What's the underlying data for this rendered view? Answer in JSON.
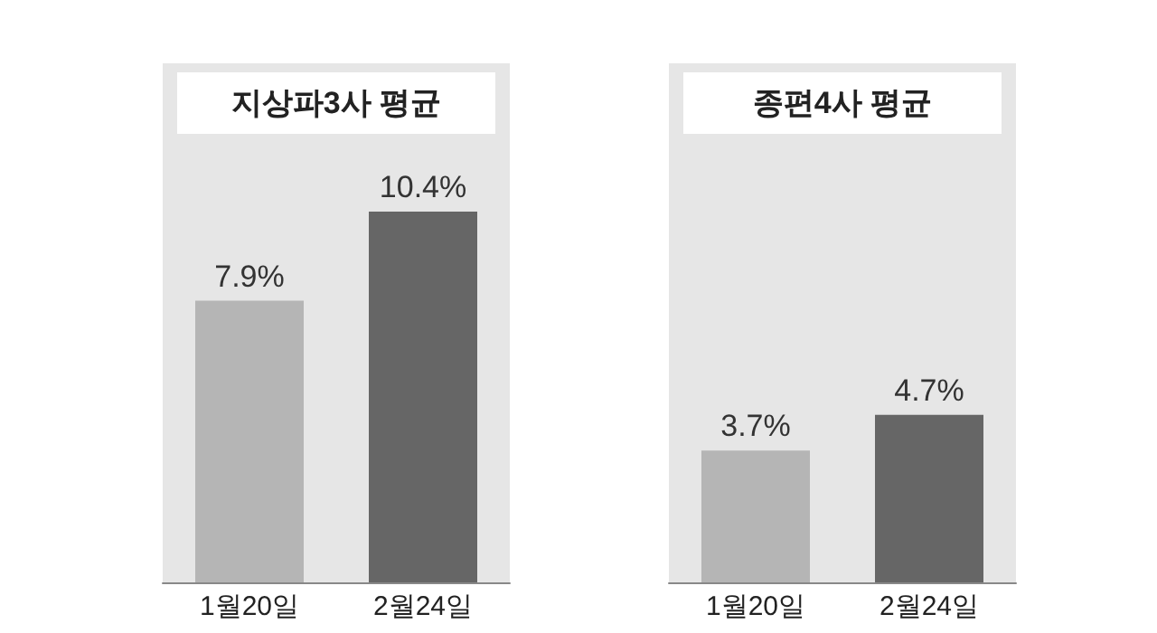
{
  "chart_data": [
    {
      "type": "bar",
      "title": "지상파3사 평균",
      "categories": [
        "1월20일",
        "2월24일"
      ],
      "values": [
        7.9,
        10.4
      ],
      "colors": [
        "#b5b5b5",
        "#666666"
      ],
      "value_labels": [
        "7.9%",
        "10.4%"
      ]
    },
    {
      "type": "bar",
      "title": "종편4사 평균",
      "categories": [
        "1월20일",
        "2월24일"
      ],
      "values": [
        3.7,
        4.7
      ],
      "colors": [
        "#b5b5b5",
        "#666666"
      ],
      "value_labels": [
        "3.7%",
        "4.7%"
      ]
    }
  ]
}
